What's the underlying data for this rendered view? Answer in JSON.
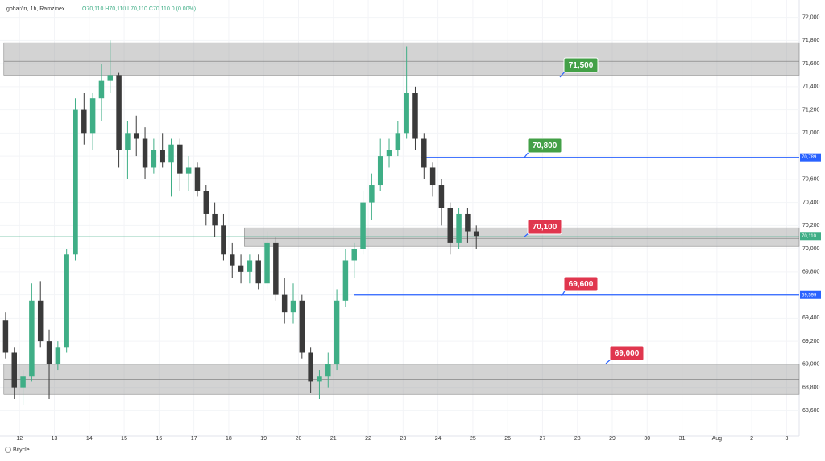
{
  "chart_data": {
    "type": "candlestick",
    "title": "gohar/irr, 1h, Ramzinex",
    "subtitle": "O70,110 H70,110 L70,110 C70,110 0 (0.00%)",
    "footer": "Bitycle",
    "xlim": [
      -0.56,
      22.36
    ],
    "ylim": [
      68380,
      72150
    ],
    "xticks": [
      {
        "value": 0,
        "label": "12"
      },
      {
        "value": 1,
        "label": "13"
      },
      {
        "value": 2,
        "label": "14"
      },
      {
        "value": 3,
        "label": "15"
      },
      {
        "value": 4,
        "label": "16"
      },
      {
        "value": 5,
        "label": "17"
      },
      {
        "value": 6,
        "label": "18"
      },
      {
        "value": 7,
        "label": "19"
      },
      {
        "value": 8,
        "label": "20"
      },
      {
        "value": 9,
        "label": "21"
      },
      {
        "value": 10,
        "label": "22"
      },
      {
        "value": 11,
        "label": "23"
      },
      {
        "value": 12,
        "label": "24"
      },
      {
        "value": 13,
        "label": "25"
      },
      {
        "value": 14,
        "label": "26"
      },
      {
        "value": 15,
        "label": "27"
      },
      {
        "value": 16,
        "label": "28"
      },
      {
        "value": 17,
        "label": "29"
      },
      {
        "value": 18,
        "label": "30"
      },
      {
        "value": 19,
        "label": "31"
      },
      {
        "value": 20,
        "label": "Aug"
      },
      {
        "value": 21,
        "label": "2"
      },
      {
        "value": 22,
        "label": "3"
      }
    ],
    "yticks": [
      {
        "value": 68600,
        "label": "68,600"
      },
      {
        "value": 68800,
        "label": "68,800"
      },
      {
        "value": 69000,
        "label": "69,000"
      },
      {
        "value": 69200,
        "label": "69,200"
      },
      {
        "value": 69400,
        "label": "69,400"
      },
      {
        "value": 69600,
        "label": "69,600"
      },
      {
        "value": 69800,
        "label": "69,800"
      },
      {
        "value": 70000,
        "label": "70,000"
      },
      {
        "value": 70200,
        "label": "70,200"
      },
      {
        "value": 70400,
        "label": "70,400"
      },
      {
        "value": 70600,
        "label": "70,600"
      },
      {
        "value": 70800,
        "label": "70,800"
      },
      {
        "value": 71000,
        "label": "71,000"
      },
      {
        "value": 71200,
        "label": "71,200"
      },
      {
        "value": 71400,
        "label": "71,400"
      },
      {
        "value": 71600,
        "label": "71,600"
      },
      {
        "value": 71800,
        "label": "71,800"
      },
      {
        "value": 72000,
        "label": "72,000"
      }
    ],
    "up_color": "#3fae86",
    "down_color": "#3a3a3a",
    "x": [
      -0.4,
      -0.15,
      0.1,
      0.35,
      0.6,
      0.85,
      1.1,
      1.35,
      1.6,
      1.85,
      2.1,
      2.35,
      2.6,
      2.85,
      3.1,
      3.35,
      3.6,
      3.85,
      4.1,
      4.35,
      4.6,
      4.85,
      5.1,
      5.35,
      5.6,
      5.85,
      6.1,
      6.35,
      6.6,
      6.85,
      7.1,
      7.35,
      7.6,
      7.85,
      8.1,
      8.35,
      8.6,
      8.85,
      9.1,
      9.35,
      9.6,
      9.85,
      10.1,
      10.35,
      10.6,
      10.85,
      11.1,
      11.35,
      11.6,
      11.85,
      12.1,
      12.35,
      12.6,
      12.85,
      13.1
    ],
    "open": [
      69380,
      69100,
      68800,
      68900,
      69550,
      69200,
      69000,
      69150,
      69950,
      71200,
      71000,
      71300,
      71450,
      71500,
      70850,
      71000,
      70950,
      70700,
      70850,
      70750,
      70900,
      70650,
      70700,
      70500,
      70300,
      70200,
      69950,
      69850,
      69800,
      69900,
      69700,
      70050,
      69600,
      69450,
      69550,
      69100,
      68850,
      68900,
      69000,
      69550,
      69900,
      70000,
      70400,
      70550,
      70800,
      70850,
      71000,
      71350,
      70950,
      70700,
      70550,
      70350,
      70050,
      70300,
      70150
    ],
    "high": [
      69450,
      69150,
      68950,
      69700,
      69720,
      69300,
      69200,
      70000,
      71300,
      71350,
      71350,
      71600,
      71800,
      71520,
      71100,
      71150,
      71050,
      70950,
      71000,
      70950,
      70950,
      70800,
      70750,
      70550,
      70400,
      70300,
      70050,
      69950,
      69950,
      69950,
      70150,
      70100,
      69750,
      69700,
      69600,
      69150,
      68950,
      69100,
      69650,
      70000,
      70050,
      70500,
      70650,
      70950,
      70950,
      71100,
      71750,
      71400,
      71000,
      70750,
      70600,
      70400,
      70350,
      70350,
      70200
    ],
    "low": [
      69050,
      68700,
      68650,
      68850,
      69150,
      68700,
      68950,
      69100,
      69900,
      70900,
      70850,
      71100,
      71350,
      70700,
      70600,
      70800,
      70600,
      70650,
      70700,
      70450,
      70500,
      70500,
      70450,
      70200,
      70100,
      69900,
      69750,
      69700,
      69700,
      69650,
      69650,
      69550,
      69350,
      69350,
      69050,
      68750,
      68700,
      68800,
      68950,
      69500,
      69750,
      69950,
      70250,
      70500,
      70700,
      70800,
      70950,
      70850,
      70600,
      70450,
      70200,
      69950,
      70000,
      70050,
      70000
    ],
    "close": [
      69100,
      68800,
      68900,
      69550,
      69200,
      69000,
      69150,
      69950,
      71200,
      71000,
      71300,
      71450,
      71500,
      70850,
      71000,
      70950,
      70700,
      70850,
      70750,
      70900,
      70650,
      70700,
      70500,
      70300,
      70200,
      69950,
      69850,
      69800,
      69900,
      69700,
      70050,
      69600,
      69450,
      69550,
      69100,
      68850,
      68900,
      69000,
      69550,
      69900,
      70000,
      70400,
      70550,
      70800,
      70850,
      71000,
      71350,
      70950,
      70700,
      70550,
      70350,
      70050,
      70300,
      70150,
      70110
    ],
    "zones": [
      {
        "from": 71500,
        "to": 71780,
        "mid": 71620,
        "start": -0.45
      },
      {
        "from": 70020,
        "to": 70180,
        "mid": 70090,
        "start": 6.45
      },
      {
        "from": 68740,
        "to": 69000,
        "mid": 68870,
        "start": -0.45
      }
    ],
    "levels": [
      {
        "value": 70789,
        "start": 11.5,
        "label": "70,789",
        "color": "#2962ff"
      },
      {
        "value": 69599,
        "start": 9.6,
        "label": "69,599",
        "color": "#2962ff"
      }
    ],
    "last_price": {
      "value": 70110,
      "label": "70,110",
      "color": "#3fae86"
    },
    "callouts": [
      {
        "label": "71,500",
        "color": "#43a047"
      },
      {
        "label": "70,800",
        "color": "#43a047"
      },
      {
        "label": "70,100",
        "color": "#e0364e"
      },
      {
        "label": "69,600",
        "color": "#e0364e"
      },
      {
        "label": "69,000",
        "color": "#e0364e"
      }
    ]
  }
}
